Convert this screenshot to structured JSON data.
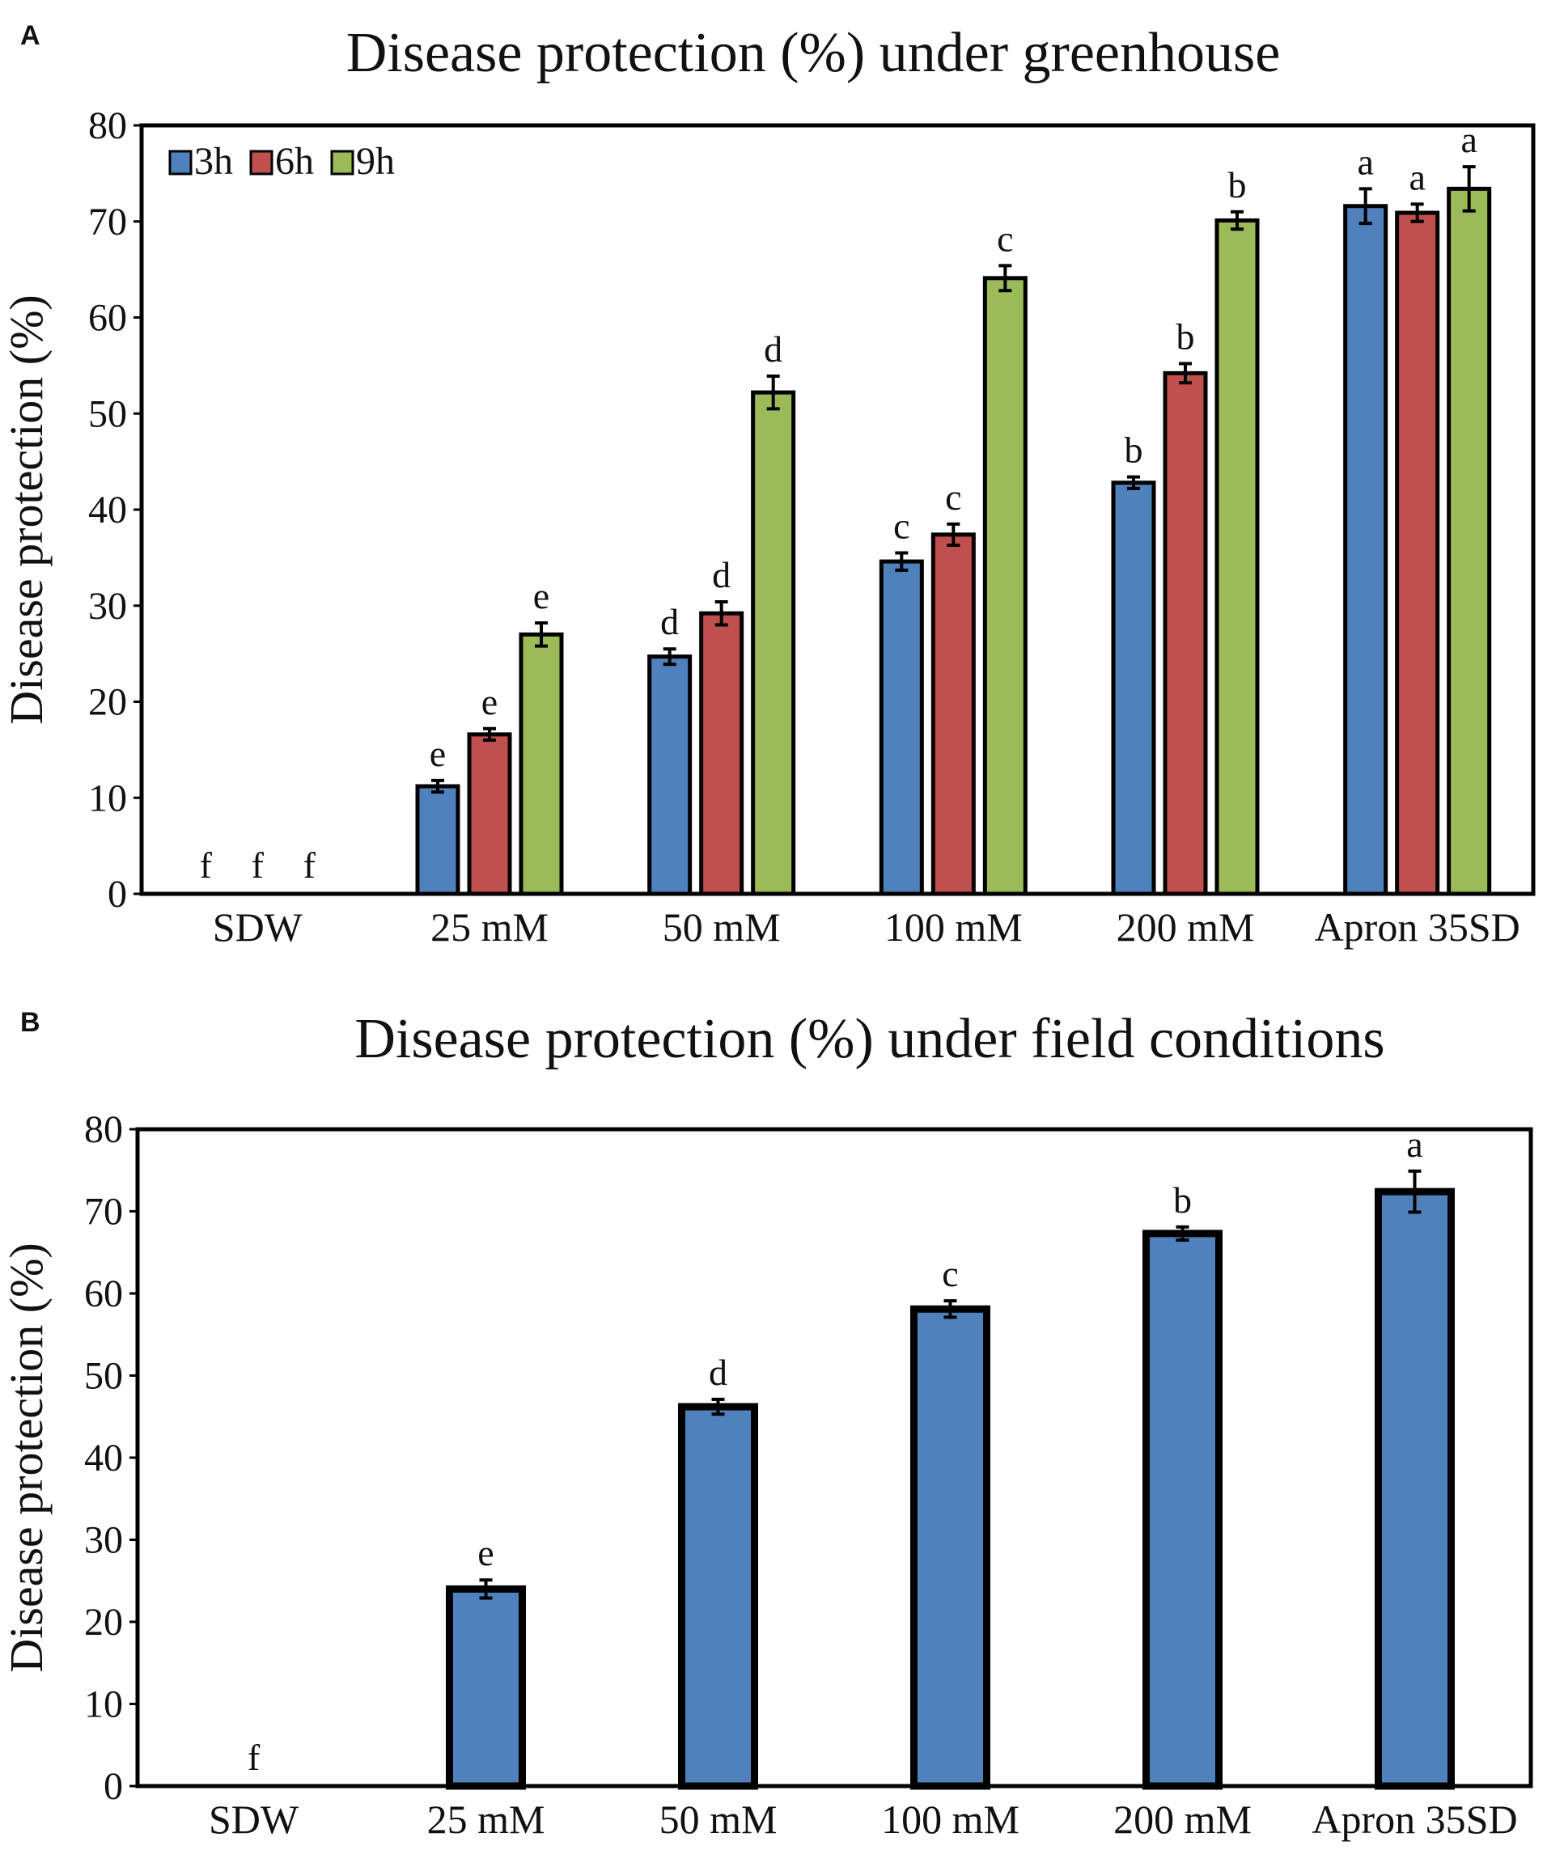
{
  "chart_data": [
    {
      "panel_label": "A",
      "type": "bar",
      "title": "Disease protection (%) under greenhouse",
      "xlabel": "",
      "ylabel": "Disease protection (%)",
      "ylim": [
        0,
        80
      ],
      "yticks": [
        0,
        10,
        20,
        30,
        40,
        50,
        60,
        70,
        80
      ],
      "grid": false,
      "legend": "top-left",
      "categories": [
        "SDW",
        "25 mM",
        "50 mM",
        "100 mM",
        "200 mM",
        "Apron 35SD"
      ],
      "series": [
        {
          "name": "3h",
          "color": "#4f81bd",
          "values": [
            0,
            11.2,
            24.7,
            34.6,
            42.8,
            71.6
          ],
          "errors": [
            0,
            0.6,
            0.8,
            0.9,
            0.6,
            1.8
          ],
          "letters": [
            "f",
            "e",
            "d",
            "c",
            "b",
            "a"
          ]
        },
        {
          "name": "6h",
          "color": "#c0504d",
          "values": [
            0,
            16.6,
            29.2,
            37.4,
            54.2,
            70.9
          ],
          "errors": [
            0,
            0.6,
            1.2,
            1.1,
            1.0,
            0.9
          ],
          "letters": [
            "f",
            "e",
            "d",
            "c",
            "b",
            "a"
          ]
        },
        {
          "name": "9h",
          "color": "#9bbb59",
          "values": [
            0,
            27.0,
            52.2,
            64.1,
            70.1,
            73.4
          ],
          "errors": [
            0,
            1.2,
            1.7,
            1.3,
            0.9,
            2.3
          ],
          "letters": [
            "f",
            "e",
            "d",
            "c",
            "b",
            "a"
          ]
        }
      ]
    },
    {
      "panel_label": "B",
      "type": "bar",
      "title": "Disease protection (%) under field conditions",
      "xlabel": "",
      "ylabel": "Disease protection (%)",
      "ylim": [
        0,
        80
      ],
      "yticks": [
        0,
        10,
        20,
        30,
        40,
        50,
        60,
        70,
        80
      ],
      "grid": false,
      "legend": "none",
      "categories": [
        "SDW",
        "25 mM",
        "50 mM",
        "100 mM",
        "200 mM",
        "Apron 35SD"
      ],
      "series": [
        {
          "name": "Disease protection",
          "color": "#4f81bd",
          "values": [
            0,
            24.0,
            46.2,
            58.1,
            67.3,
            72.4
          ],
          "errors": [
            0,
            1.1,
            0.9,
            1.0,
            0.8,
            2.5
          ],
          "letters": [
            "f",
            "e",
            "d",
            "c",
            "b",
            "a"
          ]
        }
      ]
    }
  ]
}
